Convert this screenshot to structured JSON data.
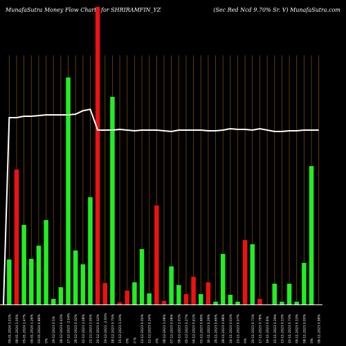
{
  "header": {
    "left": "MunafaSutra  Money Flow  Charts for SHRIRAMFIN_YZ",
    "right": "(Sec Red Ncd 9.70% Sr. V) MunafaSutra.com"
  },
  "colors": {
    "background": "#000000",
    "up": "#22ee22",
    "down": "#ee1111",
    "grid": "#7a4a12",
    "line": "#ffffff",
    "axis": "#ffffff"
  },
  "chart_data": {
    "type": "bar",
    "title": "",
    "categories": [
      "09-01-2024 1.01%",
      "08-01-2024 1.00%",
      "05-01-2024 1.47%",
      "04-01-2024 1.26%",
      "03-01-2024 0.86%",
      "0%",
      "29-12-2023 0.1%",
      "28-12-2023 0.43%",
      "27-12-2023 -2.04%",
      "26-12-2023 0.32%",
      "22-12-2023 1.08%",
      "21-12-2023 1.00%",
      "20-12-2023 0.12%",
      "19-12-2023 -2.00%",
      "18-12-2023 0.75%",
      "15-12-2023 1.33%",
      "0%",
      "0 %",
      "13-12-2023 0.00%",
      "12-12-2023 0.24%",
      "0%",
      "08-12-2023 1.08%",
      "07-12-2023 0.06%",
      "06-12-2023 1.01%",
      "05-12-2023 0.27%",
      "04-12-2023 0.41%",
      "01-12-2023 0.69%",
      "30-11-2023 0.29%",
      "29-11-2023 0.65%",
      "28-11-2023 0.98%",
      "24-11-2023 0.01%",
      "23-11-2023 0.07%",
      "0%",
      "20-11-2023 0.71%",
      "17-11-2023 0.78%",
      "16-11-2023 0.6%",
      "15-11-2023 0.29%",
      "13-11-2023 0.13%",
      "10-11-2023 0.73%",
      "09-11-2023 0.13%",
      "08-11-2023 0.00%",
      "0%",
      "06-11-2023 0.98%"
    ],
    "series": [
      {
        "values": [
          65,
          195,
          115,
          66,
          85,
          122,
          8,
          25,
          328,
          78,
          58,
          155,
          430,
          31,
          300,
          3,
          20,
          32,
          80,
          16,
          143,
          5,
          55,
          28,
          15,
          40,
          15,
          32,
          4,
          73,
          14,
          4,
          93,
          87,
          8,
          0,
          30,
          4,
          30,
          4,
          60,
          200,
          0
        ],
        "directions": [
          "up",
          "down",
          "up",
          "up",
          "up",
          "up",
          "up",
          "up",
          "up",
          "up",
          "up",
          "up",
          "down",
          "down",
          "up",
          "down",
          "down",
          "up",
          "up",
          "up",
          "down",
          "down",
          "up",
          "up",
          "down",
          "down",
          "up",
          "down",
          "up",
          "up",
          "up",
          "up",
          "down",
          "up",
          "down",
          "down",
          "up",
          "up",
          "up",
          "up",
          "up",
          "up",
          "up"
        ]
      }
    ],
    "line": [
      270,
      270,
      272,
      272,
      273,
      274,
      274,
      274,
      274,
      275,
      280,
      282,
      252,
      252,
      252,
      253,
      252,
      251,
      252,
      252,
      252,
      251,
      250,
      252,
      252,
      252,
      252,
      251,
      251,
      252,
      254,
      253,
      253,
      252,
      254,
      252,
      250,
      250,
      251,
      251,
      252,
      252,
      252
    ],
    "ylim": [
      0,
      440
    ],
    "xlabel": "",
    "ylabel": "",
    "grid": true
  }
}
